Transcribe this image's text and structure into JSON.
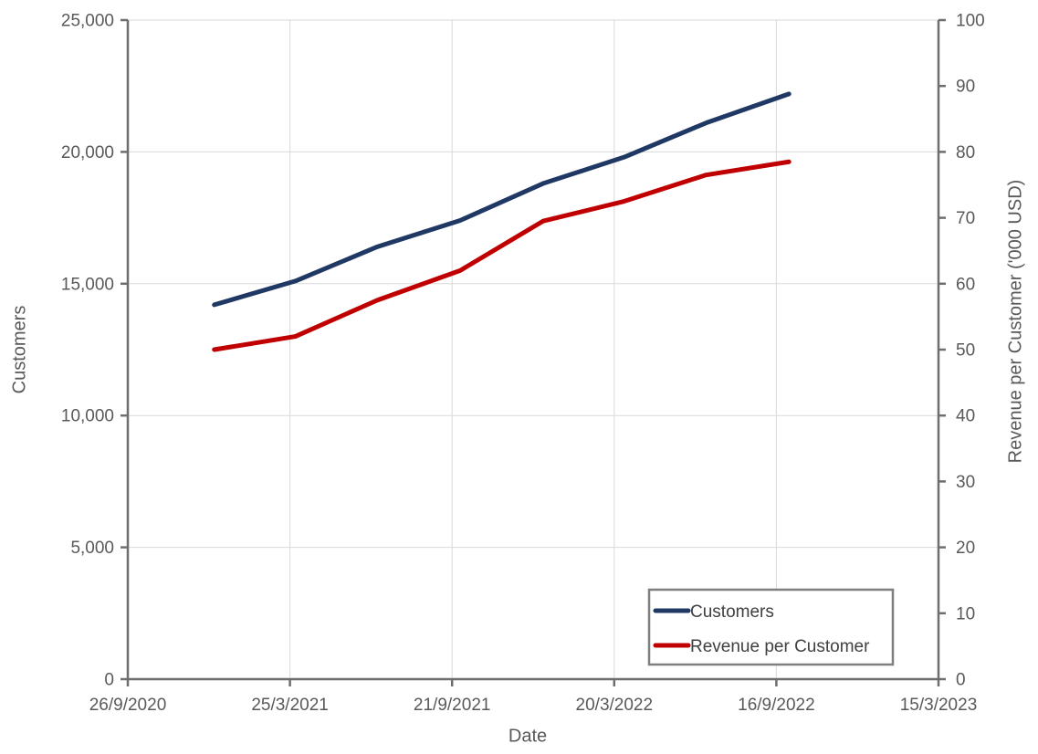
{
  "chart_data": {
    "type": "line",
    "title": "",
    "xlabel": "Date",
    "ylabel_left": "Customers",
    "ylabel_right": "Revenue per Customer ('000 USD)",
    "grid": true,
    "x_axis": {
      "tick_labels": [
        "26/9/2020",
        "25/3/2021",
        "21/9/2021",
        "20/3/2022",
        "16/9/2022",
        "15/3/2023"
      ],
      "tick_days": [
        0,
        180,
        360,
        540,
        720,
        900
      ],
      "range_days": [
        0,
        900
      ]
    },
    "left_axis": {
      "min": 0,
      "max": 25000,
      "step": 5000,
      "tick_labels": [
        "0",
        "5,000",
        "10,000",
        "15,000",
        "20,000",
        "25,000"
      ]
    },
    "right_axis": {
      "min": 0,
      "max": 100,
      "step": 10,
      "tick_labels": [
        "0",
        "10",
        "20",
        "30",
        "40",
        "50",
        "60",
        "70",
        "80",
        "90",
        "100"
      ]
    },
    "series": [
      {
        "name": "Customers",
        "axis": "left",
        "color": "#1f3864",
        "x_dates": [
          "31/12/2020",
          "31/3/2021",
          "30/6/2021",
          "30/9/2021",
          "31/12/2021",
          "31/3/2022",
          "30/6/2022",
          "30/9/2022"
        ],
        "x_days": [
          96,
          186,
          277,
          369,
          461,
          551,
          642,
          734
        ],
        "values": [
          14200,
          15100,
          16400,
          17400,
          18800,
          19800,
          21100,
          22200
        ]
      },
      {
        "name": "Revenue per Customer",
        "axis": "right",
        "color": "#c00000",
        "x_dates": [
          "31/12/2020",
          "31/3/2021",
          "30/6/2021",
          "30/9/2021",
          "31/12/2021",
          "31/3/2022",
          "30/6/2022",
          "30/9/2022"
        ],
        "x_days": [
          96,
          186,
          277,
          369,
          461,
          551,
          642,
          734
        ],
        "values": [
          50,
          52,
          57.5,
          62,
          69.5,
          72.5,
          76.5,
          78.5
        ]
      }
    ],
    "legend": {
      "position": "bottom-right",
      "entries": [
        "Customers",
        "Revenue per Customer"
      ]
    },
    "colors": {
      "background": "#ffffff",
      "gridline": "#d9d9d9",
      "axis": "#6e6e6e",
      "tick_text": "#595959",
      "legend_border": "#7f7f7f",
      "legend_text": "#404040"
    }
  }
}
